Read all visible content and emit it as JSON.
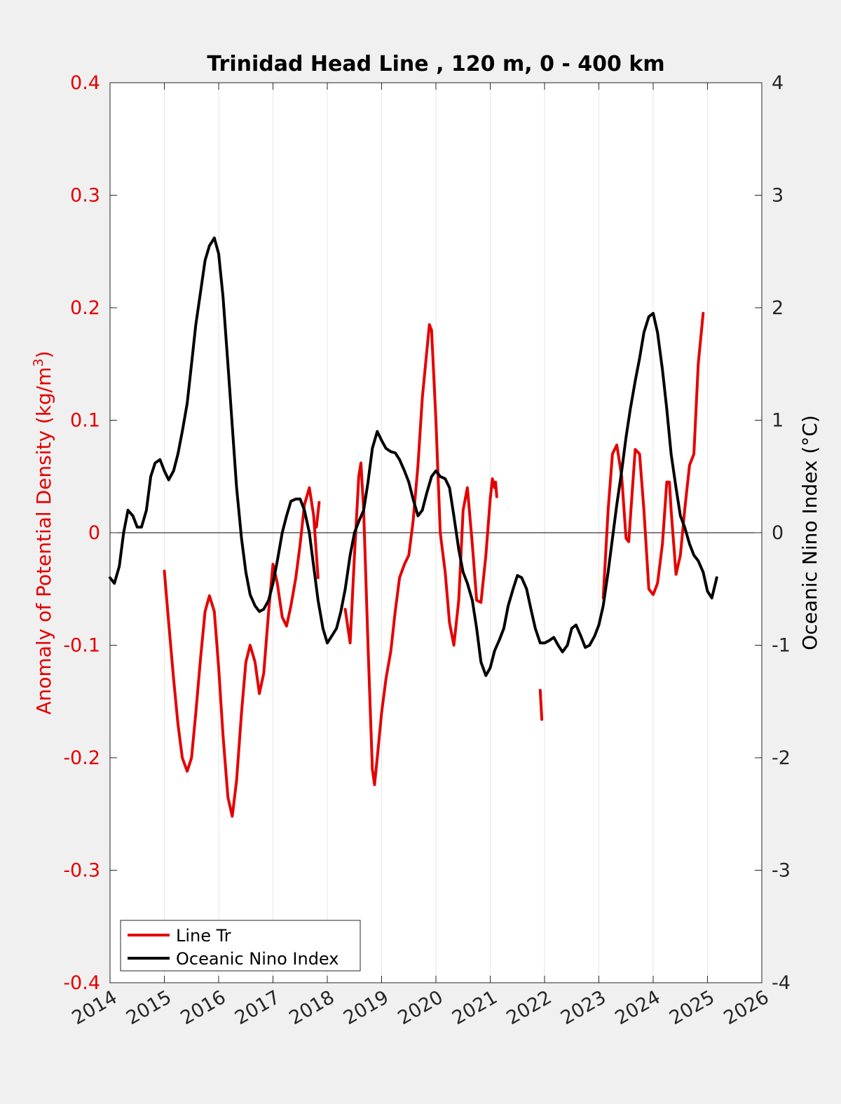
{
  "chart_data": {
    "type": "line",
    "title": "Trinidad Head Line , 120 m, 0 - 400 km",
    "ylabel_left_prefix": "Anomaly of Potential Density (kg/m",
    "ylabel_left_sup": "3",
    "ylabel_left_suffix": ")",
    "ylabel_right": "Oceanic Nino Index (°C)",
    "xlim": [
      2014,
      2026
    ],
    "ylim_left": [
      -0.4,
      0.4
    ],
    "ylim_right": [
      -4,
      4
    ],
    "x_ticks": [
      "2014",
      "2015",
      "2016",
      "2017",
      "2018",
      "2019",
      "2020",
      "2021",
      "2022",
      "2023",
      "2024",
      "2025",
      "2026"
    ],
    "y_left_ticks": [
      "0.4",
      "0.3",
      "0.2",
      "0.1",
      "0",
      "-0.1",
      "-0.2",
      "-0.3",
      "-0.4"
    ],
    "y_right_ticks": [
      "4",
      "3",
      "2",
      "1",
      "0",
      "-1",
      "-2",
      "-3",
      "-4"
    ],
    "grid": "vertical",
    "zero_line": true,
    "legend_position": "bottom-left",
    "colors": {
      "line_tr": "#e50000",
      "oni": "#000000",
      "left_axis": "#e50000",
      "right_axis": "#262626"
    },
    "series": [
      {
        "name": "Line Tr",
        "axis": "left",
        "segments": [
          [
            [
              2015.0,
              -0.034
            ],
            [
              2015.08,
              -0.08
            ],
            [
              2015.17,
              -0.13
            ],
            [
              2015.25,
              -0.17
            ],
            [
              2015.33,
              -0.2
            ],
            [
              2015.42,
              -0.212
            ],
            [
              2015.5,
              -0.2
            ],
            [
              2015.58,
              -0.16
            ],
            [
              2015.67,
              -0.11
            ],
            [
              2015.75,
              -0.07
            ],
            [
              2015.83,
              -0.056
            ],
            [
              2015.92,
              -0.07
            ],
            [
              2016.0,
              -0.12
            ],
            [
              2016.08,
              -0.18
            ],
            [
              2016.17,
              -0.235
            ],
            [
              2016.25,
              -0.252
            ],
            [
              2016.33,
              -0.22
            ],
            [
              2016.42,
              -0.16
            ],
            [
              2016.5,
              -0.115
            ],
            [
              2016.58,
              -0.1
            ],
            [
              2016.67,
              -0.115
            ],
            [
              2016.75,
              -0.143
            ],
            [
              2016.83,
              -0.125
            ],
            [
              2016.92,
              -0.07
            ],
            [
              2017.0,
              -0.028
            ],
            [
              2017.08,
              -0.045
            ],
            [
              2017.17,
              -0.075
            ],
            [
              2017.25,
              -0.083
            ],
            [
              2017.33,
              -0.065
            ],
            [
              2017.42,
              -0.04
            ],
            [
              2017.5,
              -0.01
            ],
            [
              2017.58,
              0.025
            ],
            [
              2017.67,
              0.04
            ],
            [
              2017.75,
              0.015
            ],
            [
              2017.83,
              -0.04
            ]
          ],
          [
            [
              2017.8,
              0.005
            ],
            [
              2017.85,
              0.027
            ]
          ],
          [
            [
              2018.33,
              -0.068
            ],
            [
              2018.42,
              -0.098
            ],
            [
              2018.5,
              -0.02
            ],
            [
              2018.58,
              0.05
            ],
            [
              2018.62,
              0.062
            ],
            [
              2018.67,
              0.02
            ],
            [
              2018.75,
              -0.1
            ],
            [
              2018.83,
              -0.21
            ],
            [
              2018.87,
              -0.224
            ],
            [
              2018.92,
              -0.2
            ],
            [
              2019.0,
              -0.16
            ],
            [
              2019.08,
              -0.13
            ],
            [
              2019.17,
              -0.105
            ],
            [
              2019.25,
              -0.07
            ],
            [
              2019.33,
              -0.04
            ],
            [
              2019.42,
              -0.028
            ],
            [
              2019.5,
              -0.02
            ],
            [
              2019.58,
              0.01
            ],
            [
              2019.67,
              0.06
            ],
            [
              2019.75,
              0.12
            ],
            [
              2019.83,
              0.16
            ],
            [
              2019.88,
              0.185
            ],
            [
              2019.92,
              0.18
            ],
            [
              2020.0,
              0.1
            ],
            [
              2020.08,
              0.0
            ],
            [
              2020.17,
              -0.035
            ],
            [
              2020.25,
              -0.08
            ],
            [
              2020.33,
              -0.1
            ],
            [
              2020.42,
              -0.06
            ],
            [
              2020.5,
              0.02
            ],
            [
              2020.58,
              0.04
            ],
            [
              2020.67,
              -0.01
            ],
            [
              2020.75,
              -0.06
            ],
            [
              2020.83,
              -0.062
            ],
            [
              2020.92,
              -0.02
            ],
            [
              2021.0,
              0.03
            ],
            [
              2021.04,
              0.048
            ],
            [
              2021.08,
              0.04
            ],
            [
              2021.1,
              0.045
            ],
            [
              2021.12,
              0.032
            ]
          ],
          [
            [
              2021.92,
              -0.14
            ],
            [
              2021.95,
              -0.166
            ]
          ],
          [
            [
              2023.08,
              -0.058
            ],
            [
              2023.17,
              0.02
            ],
            [
              2023.25,
              0.07
            ],
            [
              2023.33,
              0.078
            ],
            [
              2023.42,
              0.05
            ],
            [
              2023.5,
              -0.005
            ],
            [
              2023.55,
              -0.008
            ],
            [
              2023.62,
              0.04
            ],
            [
              2023.67,
              0.074
            ],
            [
              2023.75,
              0.07
            ],
            [
              2023.83,
              0.02
            ],
            [
              2023.92,
              -0.05
            ],
            [
              2024.0,
              -0.055
            ],
            [
              2024.08,
              -0.045
            ],
            [
              2024.17,
              -0.01
            ],
            [
              2024.25,
              0.045
            ],
            [
              2024.3,
              0.045
            ],
            [
              2024.33,
              0.02
            ],
            [
              2024.42,
              -0.037
            ],
            [
              2024.5,
              -0.02
            ],
            [
              2024.58,
              0.02
            ],
            [
              2024.67,
              0.06
            ],
            [
              2024.75,
              0.07
            ],
            [
              2024.83,
              0.15
            ],
            [
              2024.92,
              0.195
            ]
          ]
        ]
      },
      {
        "name": "Oceanic Nino Index",
        "axis": "right",
        "segments": [
          [
            [
              2014.0,
              -0.4
            ],
            [
              2014.08,
              -0.45
            ],
            [
              2014.17,
              -0.3
            ],
            [
              2014.25,
              0.0
            ],
            [
              2014.33,
              0.2
            ],
            [
              2014.42,
              0.15
            ],
            [
              2014.5,
              0.05
            ],
            [
              2014.58,
              0.05
            ],
            [
              2014.67,
              0.2
            ],
            [
              2014.75,
              0.5
            ],
            [
              2014.83,
              0.62
            ],
            [
              2014.92,
              0.65
            ],
            [
              2015.0,
              0.55
            ],
            [
              2015.08,
              0.47
            ],
            [
              2015.17,
              0.55
            ],
            [
              2015.25,
              0.7
            ],
            [
              2015.33,
              0.9
            ],
            [
              2015.42,
              1.15
            ],
            [
              2015.5,
              1.5
            ],
            [
              2015.58,
              1.85
            ],
            [
              2015.67,
              2.15
            ],
            [
              2015.75,
              2.42
            ],
            [
              2015.83,
              2.55
            ],
            [
              2015.92,
              2.62
            ],
            [
              2016.0,
              2.48
            ],
            [
              2016.08,
              2.1
            ],
            [
              2016.17,
              1.5
            ],
            [
              2016.25,
              0.95
            ],
            [
              2016.33,
              0.4
            ],
            [
              2016.42,
              -0.05
            ],
            [
              2016.5,
              -0.35
            ],
            [
              2016.58,
              -0.55
            ],
            [
              2016.67,
              -0.65
            ],
            [
              2016.75,
              -0.7
            ],
            [
              2016.83,
              -0.68
            ],
            [
              2016.92,
              -0.6
            ],
            [
              2017.0,
              -0.45
            ],
            [
              2017.08,
              -0.25
            ],
            [
              2017.17,
              0.0
            ],
            [
              2017.25,
              0.15
            ],
            [
              2017.33,
              0.28
            ],
            [
              2017.42,
              0.3
            ],
            [
              2017.5,
              0.3
            ],
            [
              2017.58,
              0.2
            ],
            [
              2017.67,
              0.0
            ],
            [
              2017.75,
              -0.3
            ],
            [
              2017.83,
              -0.6
            ],
            [
              2017.92,
              -0.85
            ],
            [
              2018.0,
              -0.98
            ],
            [
              2018.08,
              -0.92
            ],
            [
              2018.17,
              -0.85
            ],
            [
              2018.25,
              -0.7
            ],
            [
              2018.33,
              -0.5
            ],
            [
              2018.42,
              -0.2
            ],
            [
              2018.5,
              0.0
            ],
            [
              2018.58,
              0.1
            ],
            [
              2018.67,
              0.2
            ],
            [
              2018.75,
              0.45
            ],
            [
              2018.83,
              0.75
            ],
            [
              2018.92,
              0.9
            ],
            [
              2019.0,
              0.82
            ],
            [
              2019.08,
              0.75
            ],
            [
              2019.17,
              0.72
            ],
            [
              2019.25,
              0.71
            ],
            [
              2019.33,
              0.65
            ],
            [
              2019.42,
              0.55
            ],
            [
              2019.5,
              0.45
            ],
            [
              2019.58,
              0.3
            ],
            [
              2019.67,
              0.15
            ],
            [
              2019.75,
              0.2
            ],
            [
              2019.83,
              0.35
            ],
            [
              2019.92,
              0.5
            ],
            [
              2020.0,
              0.55
            ],
            [
              2020.08,
              0.5
            ],
            [
              2020.17,
              0.48
            ],
            [
              2020.25,
              0.4
            ],
            [
              2020.33,
              0.15
            ],
            [
              2020.42,
              -0.15
            ],
            [
              2020.5,
              -0.35
            ],
            [
              2020.58,
              -0.45
            ],
            [
              2020.67,
              -0.6
            ],
            [
              2020.75,
              -0.85
            ],
            [
              2020.83,
              -1.15
            ],
            [
              2020.92,
              -1.27
            ],
            [
              2021.0,
              -1.2
            ],
            [
              2021.08,
              -1.05
            ],
            [
              2021.17,
              -0.95
            ],
            [
              2021.25,
              -0.85
            ],
            [
              2021.33,
              -0.65
            ],
            [
              2021.42,
              -0.5
            ],
            [
              2021.5,
              -0.38
            ],
            [
              2021.58,
              -0.4
            ],
            [
              2021.67,
              -0.5
            ],
            [
              2021.75,
              -0.68
            ],
            [
              2021.83,
              -0.85
            ],
            [
              2021.92,
              -0.98
            ],
            [
              2022.0,
              -0.98
            ],
            [
              2022.08,
              -0.96
            ],
            [
              2022.17,
              -0.93
            ],
            [
              2022.25,
              -1.0
            ],
            [
              2022.33,
              -1.06
            ],
            [
              2022.42,
              -1.0
            ],
            [
              2022.5,
              -0.85
            ],
            [
              2022.58,
              -0.82
            ],
            [
              2022.67,
              -0.92
            ],
            [
              2022.75,
              -1.02
            ],
            [
              2022.83,
              -1.0
            ],
            [
              2022.92,
              -0.92
            ],
            [
              2023.0,
              -0.82
            ],
            [
              2023.08,
              -0.65
            ],
            [
              2023.17,
              -0.35
            ],
            [
              2023.25,
              -0.05
            ],
            [
              2023.33,
              0.25
            ],
            [
              2023.42,
              0.55
            ],
            [
              2023.5,
              0.85
            ],
            [
              2023.58,
              1.1
            ],
            [
              2023.67,
              1.35
            ],
            [
              2023.75,
              1.55
            ],
            [
              2023.83,
              1.78
            ],
            [
              2023.92,
              1.92
            ],
            [
              2024.0,
              1.95
            ],
            [
              2024.08,
              1.78
            ],
            [
              2024.17,
              1.45
            ],
            [
              2024.25,
              1.1
            ],
            [
              2024.33,
              0.7
            ],
            [
              2024.42,
              0.4
            ],
            [
              2024.5,
              0.15
            ],
            [
              2024.58,
              0.05
            ],
            [
              2024.67,
              -0.1
            ],
            [
              2024.75,
              -0.2
            ],
            [
              2024.83,
              -0.25
            ],
            [
              2024.92,
              -0.35
            ],
            [
              2025.0,
              -0.52
            ],
            [
              2025.08,
              -0.58
            ],
            [
              2025.17,
              -0.4
            ]
          ]
        ]
      }
    ]
  }
}
